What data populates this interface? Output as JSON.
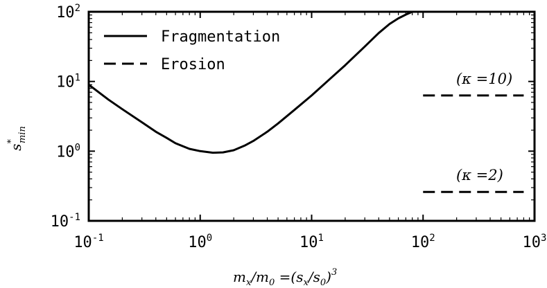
{
  "chart_data": {
    "type": "line",
    "x_scale": "log",
    "y_scale": "log",
    "xlim": [
      0.1,
      1000
    ],
    "ylim": [
      0.1,
      100
    ],
    "grid": false,
    "legend_position": "top-left",
    "xlabel": {
      "a": "m",
      "a_sub": "x",
      "b": "/m",
      "b_sub": "0",
      "c": " =(s",
      "c_sub": "x",
      "d": "/s",
      "d_sub": "0",
      "e": ")",
      "e_sup": "3"
    },
    "ylabel": {
      "base": "s",
      "sup": "*",
      "sub": "min"
    },
    "x_ticks": [
      {
        "value": 0.1,
        "base": "10",
        "exp": "-1"
      },
      {
        "value": 1,
        "base": "10",
        "exp": "0"
      },
      {
        "value": 10,
        "base": "10",
        "exp": "1"
      },
      {
        "value": 100,
        "base": "10",
        "exp": "2"
      },
      {
        "value": 1000,
        "base": "10",
        "exp": "3"
      }
    ],
    "y_ticks": [
      {
        "value": 0.1,
        "base": "10",
        "exp": "-1"
      },
      {
        "value": 1,
        "base": "10",
        "exp": "0"
      },
      {
        "value": 10,
        "base": "10",
        "exp": "1"
      },
      {
        "value": 100,
        "base": "10",
        "exp": "2"
      }
    ],
    "series": [
      {
        "name": "Fragmentation",
        "style": "solid",
        "color": "#000000",
        "x": [
          0.1,
          0.15,
          0.2,
          0.3,
          0.4,
          0.5,
          0.6,
          0.8,
          1.0,
          1.3,
          1.6,
          2.0,
          2.5,
          3.0,
          4.0,
          5.0,
          7.0,
          10,
          15,
          20,
          30,
          40,
          50,
          60,
          70,
          80
        ],
        "y": [
          9.0,
          5.5,
          4.0,
          2.6,
          1.9,
          1.55,
          1.3,
          1.08,
          1.0,
          0.95,
          0.96,
          1.03,
          1.2,
          1.4,
          1.9,
          2.5,
          3.9,
          6.3,
          11.3,
          17.1,
          31.7,
          49.5,
          66.8,
          80.4,
          91.0,
          100
        ]
      },
      {
        "name": "Erosion",
        "style": "dashed",
        "color": "#000000",
        "segments": [
          {
            "label": "(κ =10)",
            "x": [
              100,
              800
            ],
            "y": [
              6.3,
              6.3
            ]
          },
          {
            "label": "(κ =2)",
            "x": [
              100,
              800
            ],
            "y": [
              0.26,
              0.26
            ]
          }
        ]
      }
    ]
  }
}
